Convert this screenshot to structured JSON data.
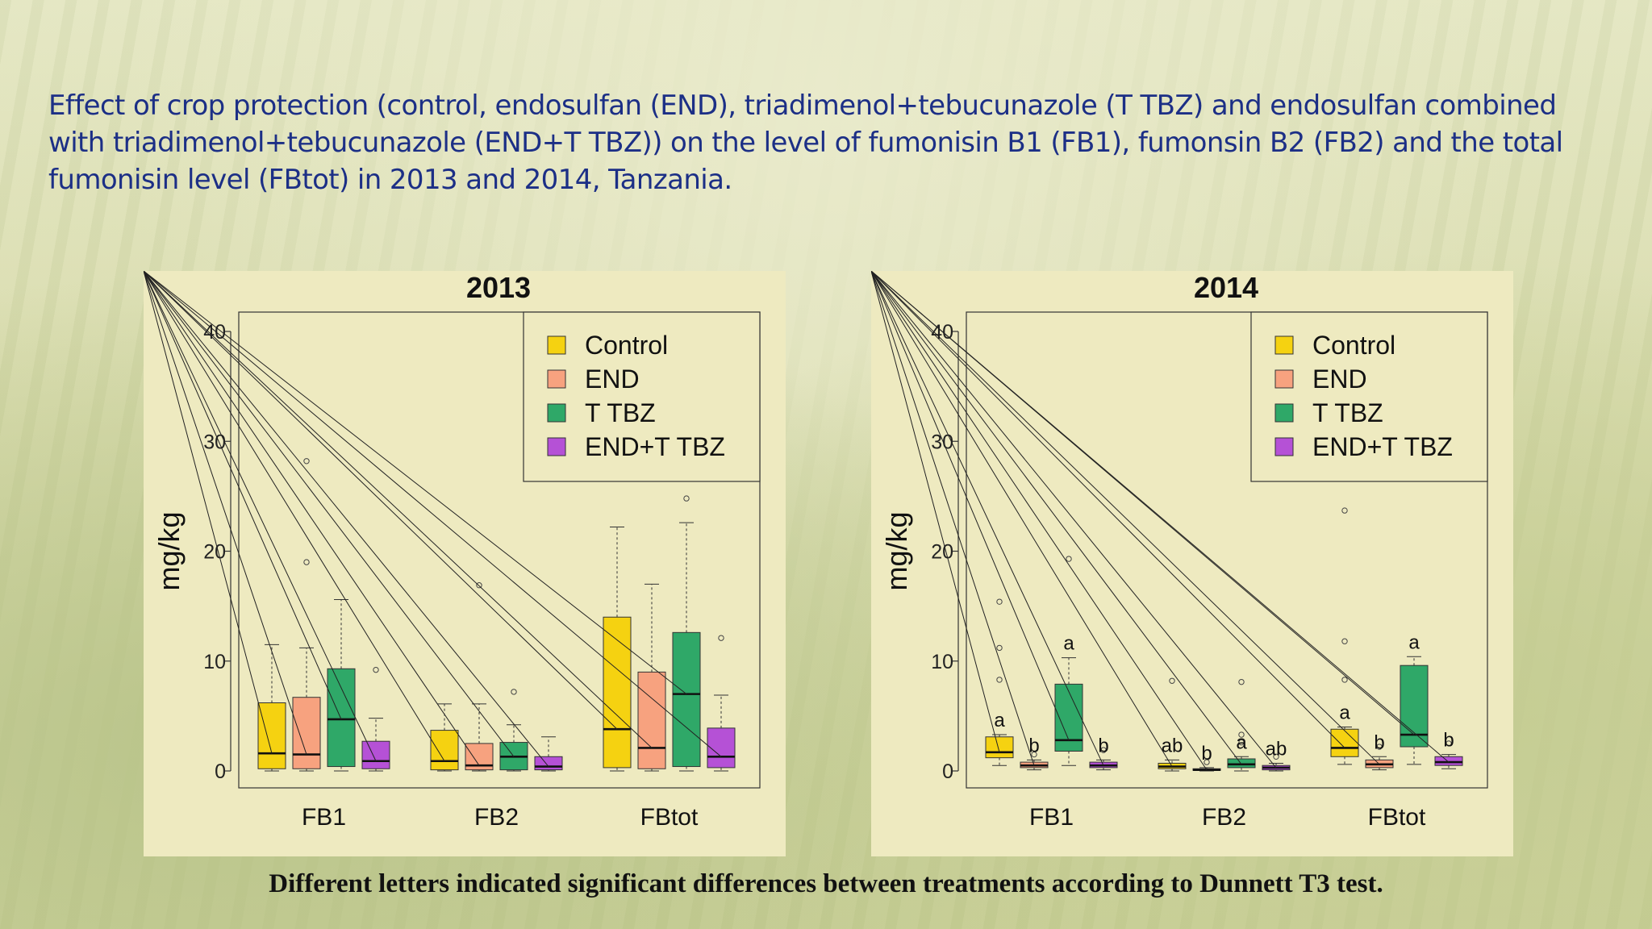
{
  "slide_title": "Effect of crop protection (control, endosulfan (END), triadimenol+tebucunazole (T TBZ) and endosulfan combined with triadimenol+tebucunazole (END+T TBZ)) on the level of fumonisin B1 (FB1), fumonsin B2 (FB2) and the total fumonisin level (FBtot) in 2013 and 2014, Tanzania.",
  "footnote": "Different letters indicated significant differences between treatments according to Dunnett T3 test.",
  "colors": {
    "Control": "#f5d211",
    "END": "#f7a27f",
    "T TBZ": "#2fa868",
    "END+T TBZ": "#b551d6",
    "panel": "#eeeac0"
  },
  "chart_data": [
    {
      "type": "box",
      "title": "2013",
      "xlabel": "",
      "ylabel": "mg/kg",
      "ylim": [
        0,
        40
      ],
      "yticks": [
        0,
        10,
        20,
        30,
        40
      ],
      "categories": [
        "FB1",
        "FB2",
        "FBtot"
      ],
      "legend_position": "top-right",
      "series": [
        {
          "name": "Control",
          "boxes": [
            {
              "min": 0,
              "q1": 0.2,
              "median": 1.6,
              "q3": 6.2,
              "max": 11.5,
              "outliers": []
            },
            {
              "min": 0,
              "q1": 0.1,
              "median": 0.9,
              "q3": 3.7,
              "max": 6.1,
              "outliers": []
            },
            {
              "min": 0,
              "q1": 0.3,
              "median": 3.8,
              "q3": 14.0,
              "max": 22.2,
              "outliers": []
            }
          ]
        },
        {
          "name": "END",
          "boxes": [
            {
              "min": 0,
              "q1": 0.2,
              "median": 1.5,
              "q3": 6.7,
              "max": 11.2,
              "outliers": [
                19.0,
                28.2
              ]
            },
            {
              "min": 0,
              "q1": 0.1,
              "median": 0.5,
              "q3": 2.5,
              "max": 6.1,
              "outliers": [
                16.9
              ]
            },
            {
              "min": 0,
              "q1": 0.2,
              "median": 2.1,
              "q3": 9.0,
              "max": 17.0,
              "outliers": []
            }
          ]
        },
        {
          "name": "T TBZ",
          "boxes": [
            {
              "min": 0,
              "q1": 0.4,
              "median": 4.7,
              "q3": 9.3,
              "max": 15.6,
              "outliers": []
            },
            {
              "min": 0,
              "q1": 0.1,
              "median": 1.3,
              "q3": 2.6,
              "max": 4.2,
              "outliers": [
                7.2
              ]
            },
            {
              "min": 0,
              "q1": 0.4,
              "median": 7.0,
              "q3": 12.6,
              "max": 22.6,
              "outliers": [
                24.8
              ]
            }
          ]
        },
        {
          "name": "END+T TBZ",
          "boxes": [
            {
              "min": 0,
              "q1": 0.2,
              "median": 0.9,
              "q3": 2.7,
              "max": 4.8,
              "outliers": [
                9.2
              ]
            },
            {
              "min": 0,
              "q1": 0.1,
              "median": 0.4,
              "q3": 1.3,
              "max": 3.1,
              "outliers": []
            },
            {
              "min": 0,
              "q1": 0.3,
              "median": 1.3,
              "q3": 3.9,
              "max": 6.9,
              "outliers": [
                12.1
              ]
            }
          ]
        }
      ]
    },
    {
      "type": "box",
      "title": "2014",
      "xlabel": "",
      "ylabel": "mg/kg",
      "ylim": [
        0,
        40
      ],
      "yticks": [
        0,
        10,
        20,
        30,
        40
      ],
      "categories": [
        "FB1",
        "FB2",
        "FBtot"
      ],
      "legend_position": "top-right",
      "series": [
        {
          "name": "Control",
          "boxes": [
            {
              "min": 0.5,
              "q1": 1.2,
              "median": 1.7,
              "q3": 3.1,
              "max": 3.3,
              "outliers": [
                8.3,
                11.2,
                15.4
              ],
              "letter": "a"
            },
            {
              "min": 0,
              "q1": 0.2,
              "median": 0.4,
              "q3": 0.7,
              "max": 1.0,
              "outliers": [
                8.2
              ],
              "letter": "ab"
            },
            {
              "min": 0.6,
              "q1": 1.3,
              "median": 2.1,
              "q3": 3.8,
              "max": 4.0,
              "outliers": [
                8.3,
                11.8,
                23.7
              ],
              "letter": "a"
            }
          ]
        },
        {
          "name": "END",
          "boxes": [
            {
              "min": 0.1,
              "q1": 0.3,
              "median": 0.5,
              "q3": 0.8,
              "max": 1.0,
              "outliers": [
                1.5
              ],
              "letter": "b"
            },
            {
              "min": 0,
              "q1": 0.05,
              "median": 0.1,
              "q3": 0.2,
              "max": 0.3,
              "outliers": [
                0.8
              ],
              "letter": "b"
            },
            {
              "min": 0.1,
              "q1": 0.3,
              "median": 0.6,
              "q3": 1.0,
              "max": 1.3,
              "outliers": [
                2.2
              ],
              "letter": "b"
            }
          ]
        },
        {
          "name": "T TBZ",
          "boxes": [
            {
              "min": 0.5,
              "q1": 1.8,
              "median": 2.8,
              "q3": 7.9,
              "max": 10.3,
              "outliers": [
                19.3
              ],
              "letter": "a"
            },
            {
              "min": 0,
              "q1": 0.3,
              "median": 0.6,
              "q3": 1.1,
              "max": 1.3,
              "outliers": [
                2.6,
                3.3,
                8.1
              ],
              "letter": "a"
            },
            {
              "min": 0.6,
              "q1": 2.2,
              "median": 3.3,
              "q3": 9.6,
              "max": 10.4,
              "outliers": [],
              "letter": "a"
            }
          ]
        },
        {
          "name": "END+T TBZ",
          "boxes": [
            {
              "min": 0.1,
              "q1": 0.3,
              "median": 0.5,
              "q3": 0.8,
              "max": 1.0,
              "outliers": [
                1.9
              ],
              "letter": "b"
            },
            {
              "min": 0,
              "q1": 0.1,
              "median": 0.3,
              "q3": 0.5,
              "max": 0.7,
              "outliers": [
                1.3
              ],
              "letter": "ab"
            },
            {
              "min": 0.2,
              "q1": 0.5,
              "median": 0.8,
              "q3": 1.3,
              "max": 1.5,
              "outliers": [
                2.5
              ],
              "letter": "b"
            }
          ]
        }
      ]
    }
  ]
}
